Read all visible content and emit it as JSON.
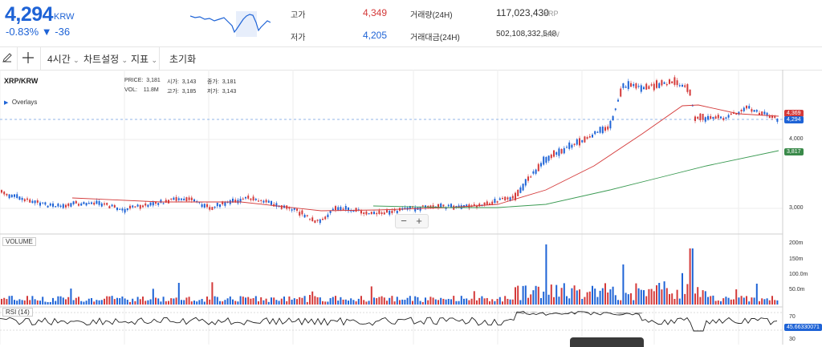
{
  "header": {
    "price": "4,294",
    "unit": "KRW",
    "change": "-0.83% ▼ -36",
    "stats": {
      "high_label": "고가",
      "high_value": "4,349",
      "low_label": "저가",
      "low_value": "4,205",
      "volume_label": "거래량(24H)",
      "volume_value": "117,023,430",
      "volume_unit": "XRP",
      "amount_label": "거래대금(24H)",
      "amount_value": "502,108,332,548",
      "amount_unit": "KRW"
    },
    "colors": {
      "down": "#1e63d6",
      "up": "#d43a3a"
    }
  },
  "toolbar": {
    "pencil_icon": "pencil-icon",
    "crosshair_icon": "crosshair-icon",
    "interval": "4시간",
    "chart_settings": "차트설정",
    "indicators": "지표",
    "reset": "초기화"
  },
  "chart": {
    "symbol": "XRP/KRW",
    "overlays": "Overlays",
    "legend": {
      "price_label": "PRICE:",
      "price": "3,181",
      "open_label": "시가:",
      "open": "3,143",
      "close_label": "종가:",
      "close": "3,181",
      "vol_label": "VOL:",
      "vol": "11.8M",
      "high_label": "고가:",
      "high": "3,185",
      "low_label": "저가:",
      "low": "3,143"
    },
    "price_axis": [
      "4,000",
      "3,000"
    ],
    "tags": {
      "current": "4,294",
      "ma_red": "4,369",
      "ma_green": "3,817"
    },
    "volume_label": "VOLUME",
    "volume_axis": [
      "200m",
      "150m",
      "100.0m",
      "50.0m"
    ],
    "rsi_label": "RSI (14)",
    "rsi_axis": [
      "70",
      "30"
    ],
    "rsi_value": "45.66330071",
    "zoom": {
      "minus": "−",
      "plus": "+"
    }
  }
}
